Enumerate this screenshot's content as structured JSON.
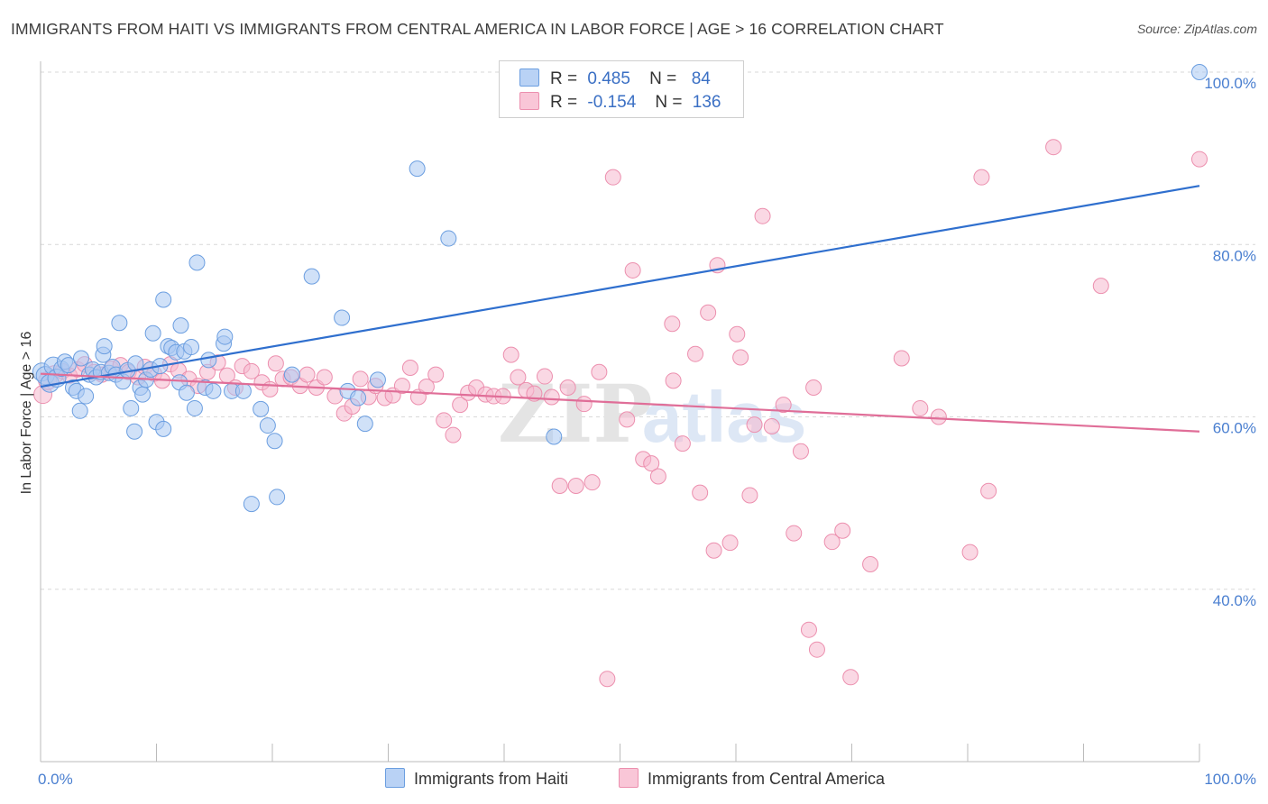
{
  "title": "IMMIGRANTS FROM HAITI VS IMMIGRANTS FROM CENTRAL AMERICA IN LABOR FORCE | AGE > 16 CORRELATION CHART",
  "source": "Source: ZipAtlas.com",
  "watermark": {
    "zip": "ZIP",
    "atlas": "atlas"
  },
  "colors": {
    "haiti_fill": "#a9c8f3",
    "haiti_stroke": "#6b9ee0",
    "haiti_line": "#2f6fce",
    "ca_fill": "#f6b8cd",
    "ca_stroke": "#ec8fae",
    "ca_line": "#e06e98",
    "grid": "#d8d8d8",
    "tick_text": "#4a7fd0"
  },
  "legend": {
    "rows": [
      {
        "r_label": "R =",
        "r_value": "0.485",
        "n_label": "N =",
        "n_value": "84"
      },
      {
        "r_label": "R =",
        "r_value": "-0.154",
        "n_label": "N =",
        "n_value": "136"
      }
    ]
  },
  "chart_data": {
    "type": "scatter",
    "xlabel": "",
    "ylabel": "In Labor Force | Age > 16",
    "xlim": [
      0,
      100
    ],
    "ylim": [
      20,
      100
    ],
    "y_ticks": [
      {
        "value": 40,
        "label": "40.0%"
      },
      {
        "value": 60,
        "label": "60.0%"
      },
      {
        "value": 80,
        "label": "80.0%"
      },
      {
        "value": 100,
        "label": "100.0%"
      }
    ],
    "x_tick_labels": {
      "min": "0.0%",
      "max": "100.0%"
    },
    "grid": true,
    "legend_position": "top-center",
    "series": [
      {
        "name": "Immigrants from Haiti",
        "trend": {
          "x0": 0,
          "y0": 63.5,
          "x1": 100,
          "y1": 86.8
        },
        "points": [
          [
            0.1,
            65.2
          ],
          [
            0.4,
            64.8
          ],
          [
            0.8,
            63.9
          ],
          [
            1.1,
            65.9
          ],
          [
            1.4,
            64.5
          ],
          [
            1.8,
            65.6
          ],
          [
            2.1,
            66.4
          ],
          [
            2.4,
            66.0
          ],
          [
            2.8,
            63.4
          ],
          [
            3.1,
            63.0
          ],
          [
            3.4,
            60.7
          ],
          [
            3.5,
            66.8
          ],
          [
            3.9,
            62.4
          ],
          [
            4.2,
            64.9
          ],
          [
            4.5,
            65.5
          ],
          [
            4.8,
            64.6
          ],
          [
            5.2,
            65.2
          ],
          [
            5.4,
            67.2
          ],
          [
            5.5,
            68.2
          ],
          [
            5.9,
            65.1
          ],
          [
            6.2,
            65.8
          ],
          [
            6.5,
            64.9
          ],
          [
            6.8,
            70.9
          ],
          [
            7.1,
            64.1
          ],
          [
            7.5,
            65.4
          ],
          [
            7.8,
            61.0
          ],
          [
            8.1,
            58.3
          ],
          [
            8.2,
            66.2
          ],
          [
            8.6,
            63.4
          ],
          [
            8.8,
            62.6
          ],
          [
            9.1,
            64.3
          ],
          [
            9.5,
            65.5
          ],
          [
            9.7,
            69.7
          ],
          [
            10.0,
            59.4
          ],
          [
            10.3,
            65.9
          ],
          [
            10.6,
            58.6
          ],
          [
            10.6,
            73.6
          ],
          [
            11.0,
            68.2
          ],
          [
            11.3,
            68.0
          ],
          [
            11.7,
            67.5
          ],
          [
            12.0,
            64.0
          ],
          [
            12.1,
            70.6
          ],
          [
            12.4,
            67.6
          ],
          [
            12.6,
            62.8
          ],
          [
            13.0,
            68.1
          ],
          [
            13.3,
            61.0
          ],
          [
            13.5,
            77.9
          ],
          [
            14.2,
            63.4
          ],
          [
            14.5,
            66.6
          ],
          [
            14.9,
            63.0
          ],
          [
            15.8,
            68.5
          ],
          [
            15.9,
            69.3
          ],
          [
            16.5,
            63.0
          ],
          [
            17.5,
            63.0
          ],
          [
            18.2,
            49.9
          ],
          [
            19.0,
            60.9
          ],
          [
            19.6,
            59.0
          ],
          [
            20.2,
            57.2
          ],
          [
            20.4,
            50.7
          ],
          [
            21.7,
            64.9
          ],
          [
            23.4,
            76.3
          ],
          [
            26.0,
            71.5
          ],
          [
            26.5,
            63.0
          ],
          [
            27.4,
            62.2
          ],
          [
            28.0,
            59.2
          ],
          [
            29.1,
            64.3
          ],
          [
            32.5,
            88.8
          ],
          [
            35.2,
            80.7
          ],
          [
            44.3,
            57.7
          ],
          [
            100,
            100
          ]
        ]
      },
      {
        "name": "Immigrants from Central America",
        "trend": {
          "x0": 0,
          "y0": 65.0,
          "x1": 100,
          "y1": 58.3
        },
        "points": [
          [
            0.2,
            62.6
          ],
          [
            0.6,
            64.2
          ],
          [
            1.2,
            64.9
          ],
          [
            1.9,
            65.3
          ],
          [
            2.5,
            64.8
          ],
          [
            3.2,
            65.5
          ],
          [
            3.8,
            66.1
          ],
          [
            4.6,
            65.2
          ],
          [
            5.3,
            64.9
          ],
          [
            6.1,
            65.6
          ],
          [
            6.9,
            66.0
          ],
          [
            7.6,
            65.2
          ],
          [
            8.4,
            64.6
          ],
          [
            9.0,
            65.8
          ],
          [
            9.8,
            65.0
          ],
          [
            10.5,
            64.2
          ],
          [
            11.2,
            66.1
          ],
          [
            11.9,
            65.4
          ],
          [
            12.8,
            64.4
          ],
          [
            13.6,
            63.6
          ],
          [
            14.4,
            65.2
          ],
          [
            15.3,
            66.3
          ],
          [
            16.1,
            64.8
          ],
          [
            16.8,
            63.4
          ],
          [
            17.4,
            65.9
          ],
          [
            18.2,
            65.3
          ],
          [
            19.1,
            64.0
          ],
          [
            19.8,
            63.2
          ],
          [
            20.3,
            66.2
          ],
          [
            20.9,
            64.4
          ],
          [
            21.6,
            64.6
          ],
          [
            22.4,
            63.6
          ],
          [
            23.0,
            64.9
          ],
          [
            23.8,
            63.4
          ],
          [
            24.5,
            64.6
          ],
          [
            25.4,
            62.4
          ],
          [
            26.2,
            60.4
          ],
          [
            26.9,
            61.2
          ],
          [
            27.6,
            64.4
          ],
          [
            28.3,
            62.3
          ],
          [
            28.9,
            63.6
          ],
          [
            29.7,
            62.2
          ],
          [
            30.4,
            62.5
          ],
          [
            31.2,
            63.6
          ],
          [
            31.9,
            65.7
          ],
          [
            32.6,
            62.3
          ],
          [
            33.3,
            63.5
          ],
          [
            34.1,
            64.9
          ],
          [
            34.8,
            59.6
          ],
          [
            35.6,
            57.9
          ],
          [
            36.2,
            61.4
          ],
          [
            36.9,
            62.8
          ],
          [
            37.6,
            63.4
          ],
          [
            38.4,
            62.6
          ],
          [
            39.1,
            62.4
          ],
          [
            39.9,
            62.4
          ],
          [
            40.6,
            67.2
          ],
          [
            41.2,
            64.6
          ],
          [
            41.9,
            63.1
          ],
          [
            42.6,
            62.7
          ],
          [
            43.5,
            64.7
          ],
          [
            44.1,
            62.3
          ],
          [
            44.8,
            52.0
          ],
          [
            45.5,
            63.4
          ],
          [
            46.2,
            52.0
          ],
          [
            46.9,
            61.5
          ],
          [
            47.6,
            52.4
          ],
          [
            48.2,
            65.2
          ],
          [
            48.9,
            29.6
          ],
          [
            49.4,
            87.8
          ],
          [
            50.6,
            59.7
          ],
          [
            51.1,
            77.0
          ],
          [
            52.0,
            55.1
          ],
          [
            52.7,
            54.6
          ],
          [
            53.3,
            53.1
          ],
          [
            54.5,
            70.8
          ],
          [
            54.6,
            64.2
          ],
          [
            55.4,
            56.9
          ],
          [
            56.5,
            67.3
          ],
          [
            56.9,
            51.2
          ],
          [
            57.6,
            72.1
          ],
          [
            58.1,
            44.5
          ],
          [
            58.4,
            77.6
          ],
          [
            59.5,
            45.4
          ],
          [
            60.1,
            69.6
          ],
          [
            60.4,
            66.9
          ],
          [
            61.2,
            50.9
          ],
          [
            61.6,
            59.1
          ],
          [
            62.3,
            83.3
          ],
          [
            63.1,
            58.9
          ],
          [
            64.1,
            61.4
          ],
          [
            65.0,
            46.5
          ],
          [
            65.6,
            56.0
          ],
          [
            66.3,
            35.3
          ],
          [
            66.7,
            63.4
          ],
          [
            67.0,
            33.0
          ],
          [
            68.3,
            45.5
          ],
          [
            69.2,
            46.8
          ],
          [
            69.9,
            29.8
          ],
          [
            71.6,
            42.9
          ],
          [
            74.3,
            66.8
          ],
          [
            75.9,
            61.0
          ],
          [
            77.5,
            60.0
          ],
          [
            80.2,
            44.3
          ],
          [
            81.8,
            51.4
          ],
          [
            81.2,
            87.8
          ],
          [
            87.4,
            91.3
          ],
          [
            91.5,
            75.2
          ],
          [
            100,
            89.9
          ]
        ]
      }
    ]
  },
  "bottom_legend": [
    {
      "label": "Immigrants from Haiti"
    },
    {
      "label": "Immigrants from Central America"
    }
  ]
}
